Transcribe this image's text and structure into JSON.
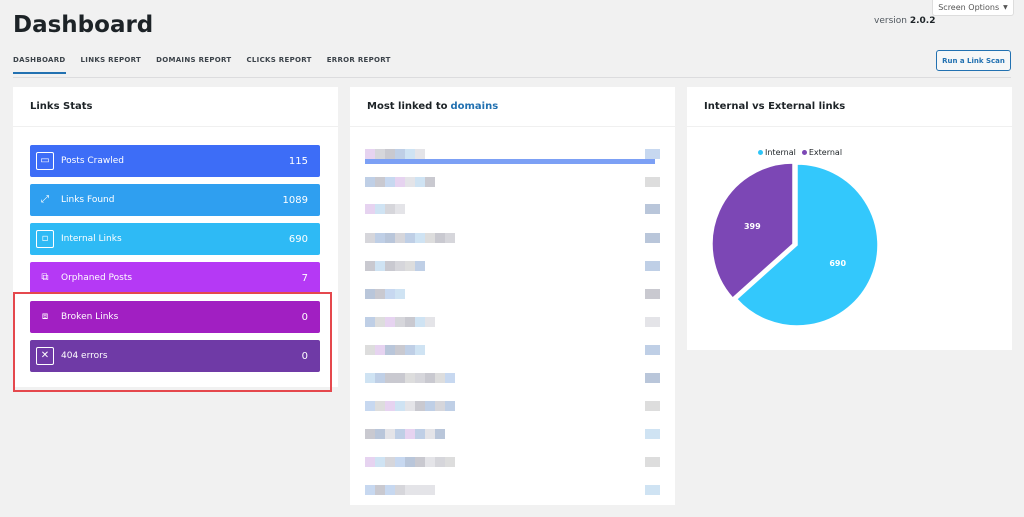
{
  "screen_options": {
    "label": "Screen Options",
    "arrow": "▼"
  },
  "page": {
    "title": "Dashboard",
    "version_label": "version",
    "version_number": "2.0.2"
  },
  "tabs": [
    "DASHBOARD",
    "LINKS REPORT",
    "DOMAINS REPORT",
    "CLICKS REPORT",
    "ERROR REPORT"
  ],
  "active_tab": 0,
  "run_scan_label": "Run a Link Scan",
  "links_stats": {
    "title": "Links Stats",
    "items": [
      {
        "label": "Posts Crawled",
        "value": "115",
        "icon": "window-icon",
        "color": "#3d6df7"
      },
      {
        "label": "Links Found",
        "value": "1089",
        "icon": "external-link-icon",
        "color": "#2f9ff0"
      },
      {
        "label": "Internal Links",
        "value": "690",
        "icon": "internal-link-icon",
        "color": "#2ebaf5"
      },
      {
        "label": "Orphaned Posts",
        "value": "7",
        "icon": "orphan-windows-icon",
        "color": "#b539f5"
      },
      {
        "label": "Broken Links",
        "value": "0",
        "icon": "broken-link-icon",
        "color": "#a11fc2"
      },
      {
        "label": "404 errors",
        "value": "0",
        "icon": "close-box-icon",
        "color": "#6f3aa6"
      }
    ]
  },
  "domains_card": {
    "title_prefix": "Most linked to",
    "title_highlight": "domains"
  },
  "pie_card": {
    "title": "Internal vs External links",
    "legend": [
      {
        "label": "Internal",
        "color": "#2ec5f7"
      },
      {
        "label": "External",
        "color": "#7c47b5"
      }
    ]
  },
  "chart_data": {
    "type": "pie",
    "title": "Internal vs External links",
    "categories": [
      "Internal",
      "External"
    ],
    "values": [
      690,
      399
    ],
    "colors": [
      "#33c8fc",
      "#7c47b5"
    ]
  }
}
